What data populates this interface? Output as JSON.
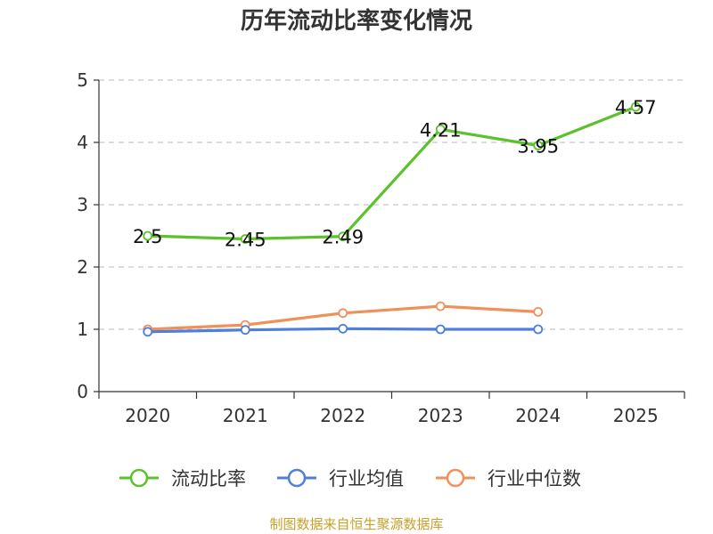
{
  "chart_data": {
    "type": "line",
    "title": "历年流动比率变化情况",
    "categories": [
      "2020",
      "2021",
      "2022",
      "2023",
      "2024",
      "2025"
    ],
    "y_ticks": [
      "0",
      "1",
      "2",
      "3",
      "4",
      "5"
    ],
    "ylim": [
      0,
      5
    ],
    "grid": "horizontal dashed",
    "legend_position": "bottom",
    "series": [
      {
        "name": "流动比率",
        "color": "#5cc12c",
        "values": [
          2.5,
          2.45,
          2.49,
          4.21,
          3.95,
          4.57
        ],
        "labels": [
          "2.5",
          "2.45",
          "2.49",
          "4.21",
          "3.95",
          "4.57"
        ]
      },
      {
        "name": "行业均值",
        "color": "#4e7fdb",
        "values": [
          0.96,
          0.99,
          1.01,
          1.0,
          1.0,
          null
        ]
      },
      {
        "name": "行业中位数",
        "color": "#f0905a",
        "values": [
          1.0,
          1.07,
          1.26,
          1.37,
          1.28,
          null
        ]
      }
    ],
    "source": "制图数据来自恒生聚源数据库"
  }
}
